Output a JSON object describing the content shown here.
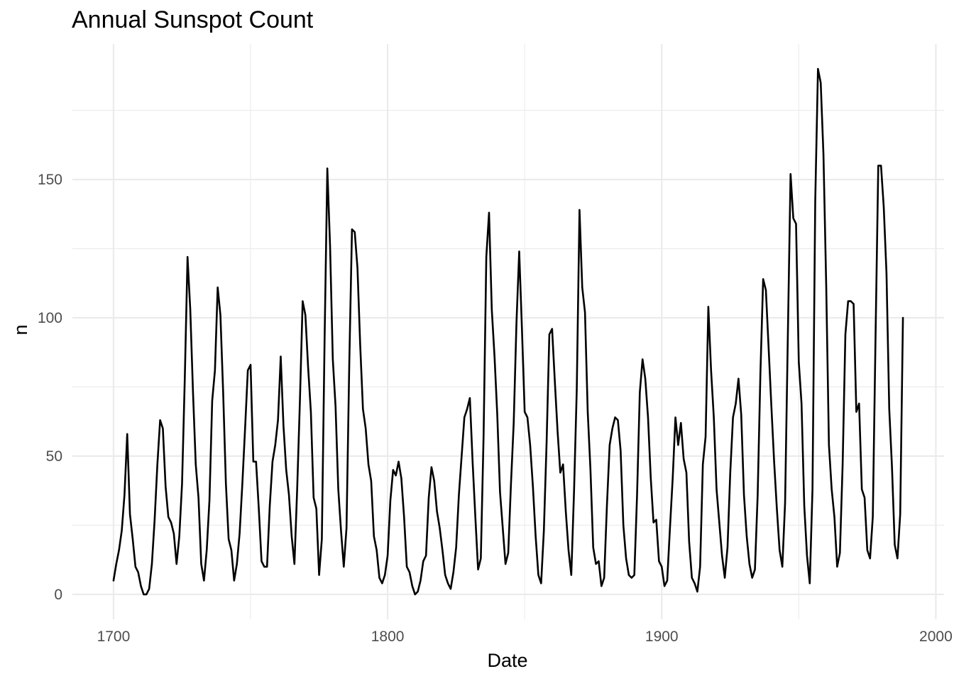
{
  "chart_data": {
    "type": "line",
    "title": "Annual Sunspot Count",
    "xlabel": "Date",
    "ylabel": "n",
    "xlim": [
      1685,
      2003
    ],
    "ylim": [
      -9,
      199
    ],
    "x_ticks": [
      1700,
      1800,
      1900,
      2000
    ],
    "x_minor_ticks": [
      1750,
      1850,
      1950
    ],
    "y_ticks": [
      0,
      50,
      100,
      150
    ],
    "y_minor_ticks": [
      25,
      75,
      125,
      175
    ],
    "grid": true,
    "legend": "none",
    "series": [
      {
        "color": "#000000",
        "x_start": 1700,
        "x_step": 1,
        "values": [
          5,
          11,
          16,
          23,
          36,
          58,
          29,
          20,
          10,
          8,
          3,
          0,
          0,
          2,
          11,
          27,
          47,
          63,
          60,
          39,
          28,
          26,
          22,
          11,
          21,
          40,
          78,
          122,
          103,
          73,
          47,
          35,
          11,
          5,
          16,
          34,
          70,
          81,
          111,
          101,
          73,
          40,
          20,
          16,
          5,
          11,
          22,
          40,
          60,
          81,
          83,
          48,
          48,
          31,
          12,
          10,
          10,
          32,
          48,
          54,
          63,
          86,
          61,
          45,
          36,
          21,
          11,
          38,
          70,
          106,
          101,
          82,
          66,
          35,
          31,
          7,
          20,
          92,
          154,
          126,
          85,
          68,
          38,
          23,
          10,
          24,
          83,
          132,
          131,
          118,
          90,
          67,
          60,
          47,
          41,
          21,
          16,
          6,
          4,
          7,
          14,
          34,
          45,
          43,
          48,
          42,
          28,
          10,
          8,
          3,
          0,
          1,
          5,
          12,
          14,
          35,
          46,
          41,
          30,
          24,
          16,
          7,
          4,
          2,
          8,
          17,
          36,
          50,
          64,
          67,
          71,
          48,
          28,
          9,
          13,
          57,
          122,
          138,
          103,
          86,
          65,
          37,
          24,
          11,
          15,
          40,
          62,
          98,
          124,
          96,
          66,
          64,
          54,
          39,
          21,
          7,
          4,
          23,
          55,
          94,
          96,
          77,
          59,
          44,
          47,
          30,
          16,
          7,
          37,
          74,
          139,
          111,
          102,
          66,
          45,
          17,
          11,
          12,
          3,
          6,
          32,
          54,
          60,
          64,
          63,
          52,
          25,
          13,
          7,
          6,
          7,
          36,
          73,
          85,
          78,
          64,
          42,
          26,
          27,
          12,
          10,
          3,
          5,
          24,
          42,
          64,
          54,
          62,
          49,
          44,
          19,
          6,
          4,
          1,
          10,
          47,
          57,
          104,
          81,
          64,
          38,
          26,
          14,
          6,
          17,
          44,
          64,
          69,
          78,
          65,
          36,
          21,
          11,
          6,
          9,
          36,
          80,
          114,
          110,
          89,
          68,
          48,
          31,
          16,
          10,
          33,
          93,
          152,
          136,
          134,
          84,
          69,
          32,
          14,
          4,
          38,
          142,
          190,
          185,
          159,
          112,
          54,
          38,
          28,
          10,
          15,
          47,
          94,
          106,
          106,
          105,
          66,
          69,
          38,
          35,
          16,
          13,
          28,
          93,
          155,
          155,
          140,
          116,
          67,
          46,
          18,
          13,
          29,
          100
        ]
      }
    ]
  }
}
